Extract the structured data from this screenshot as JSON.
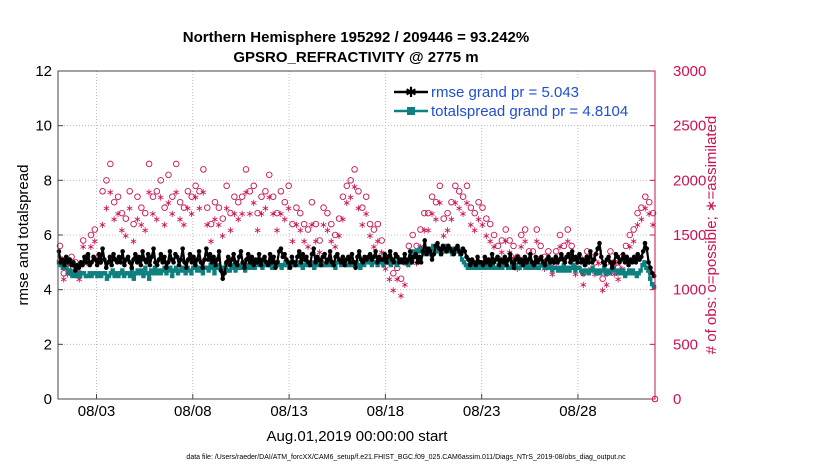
{
  "chart_data": {
    "type": "line",
    "title_line1": "Northern Hemisphere 195292 / 209446 = 93.242%",
    "title_line2": "GPSRO_REFRACTIVITY @ 2775 m",
    "xlabel": "Aug.01,2019 00:00:00 start",
    "ylabel_left": "rmse and totalspread",
    "ylabel_right": "# of obs: o=possible; ∗=assimilated",
    "footer": "data file: /Users/raeder/DAI/ATM_forcXX/CAM6_setup/f.e21.FHIST_BGC.f09_025.CAM6assim.011/Diags_NTrS_2019-08/obs_diag_output.nc",
    "xlim": [
      1,
      32
    ],
    "ylim_left": [
      0,
      12
    ],
    "ylim_right": [
      0,
      3000
    ],
    "x_ticks": [
      3,
      8,
      13,
      18,
      23,
      28
    ],
    "x_tick_labels": [
      "08/03",
      "08/08",
      "08/13",
      "08/18",
      "08/23",
      "08/28"
    ],
    "y_left_ticks": [
      "0",
      "2",
      "4",
      "6",
      "8",
      "10",
      "12"
    ],
    "y_right_ticks": [
      "0",
      "500",
      "1000",
      "1500",
      "2000",
      "2500",
      "3000"
    ],
    "colors": {
      "rmse": "#000000",
      "spread": "#0f8080",
      "obs": "#cc1155",
      "legend_text": "#1f4fd1"
    },
    "series": [
      {
        "name": "rmse grand pr = 5.043",
        "values": [
          5.4,
          5.0,
          5.1,
          4.9,
          5.2,
          5.0,
          5.1,
          4.9,
          5.0,
          4.7,
          4.9,
          4.8,
          5.0,
          4.9,
          5.2,
          5.0,
          5.3,
          4.9,
          5.0,
          5.2,
          5.1,
          4.9,
          5.3,
          5.0,
          5.5,
          5.1,
          4.8,
          5.0,
          5.2,
          4.9,
          5.3,
          5.1,
          5.0,
          5.2,
          5.0,
          5.4,
          4.9,
          5.1,
          5.2,
          5.0,
          4.8,
          5.1,
          5.3,
          5.0,
          5.2,
          4.9,
          5.4,
          5.1,
          5.0,
          5.3,
          4.9,
          5.2,
          5.5,
          5.0,
          4.9,
          5.1,
          5.3,
          5.0,
          5.2,
          4.8,
          5.0,
          5.4,
          5.1,
          5.0,
          5.3,
          5.2,
          4.9,
          5.1,
          5.5,
          5.0,
          4.8,
          5.1,
          5.3,
          5.0,
          5.2,
          4.9,
          5.1,
          5.4,
          5.0,
          4.8,
          5.1,
          5.5,
          5.1,
          5.3,
          5.0,
          5.2,
          4.9,
          5.1,
          5.4,
          4.7,
          4.4,
          4.6,
          5.0,
          5.2,
          4.9,
          5.1,
          5.3,
          5.0,
          4.9,
          5.2,
          5.4,
          5.0,
          4.8,
          5.1,
          5.3,
          5.0,
          5.2,
          4.9,
          5.1,
          5.0,
          5.3,
          4.9,
          5.1,
          5.2,
          5.0,
          4.9,
          5.3,
          5.0,
          5.2,
          4.8,
          5.0,
          5.4,
          5.5,
          5.2,
          5.3,
          5.1,
          5.0,
          4.8,
          5.2,
          5.0,
          4.9,
          5.2,
          5.4,
          5.0,
          5.3,
          5.1,
          5.2,
          5.0,
          4.9,
          5.3,
          5.5,
          5.0,
          5.2,
          5.1,
          4.9,
          5.2,
          5.3,
          5.0,
          5.1,
          5.4,
          5.0,
          4.9,
          5.2,
          5.3,
          5.1,
          5.0,
          5.2,
          4.9,
          5.1,
          5.2,
          5.0,
          5.3,
          5.0,
          4.8,
          5.2,
          5.4,
          5.1,
          5.0,
          5.2,
          5.1,
          5.2,
          5.3,
          5.1,
          5.2,
          5.4,
          5.0,
          5.2,
          5.1,
          5.1,
          5.3,
          5.0,
          5.2,
          5.4,
          5.1,
          5.0,
          5.3,
          5.2,
          5.0,
          5.1,
          5.0,
          5.3,
          5.0,
          5.1,
          5.4,
          5.0,
          5.2,
          5.3,
          5.0,
          5.2,
          5.0,
          5.4,
          5.8,
          5.3,
          5.5,
          5.4,
          5.1,
          5.3,
          5.6,
          5.7,
          5.5,
          5.3,
          5.6,
          5.5,
          5.4,
          5.6,
          5.5,
          5.4,
          5.3,
          5.5,
          5.6,
          5.4,
          5.3,
          5.5,
          5.4,
          5.2,
          5.1,
          4.9,
          5.1,
          5.0,
          4.9,
          5.2,
          5.0,
          5.0,
          4.9,
          5.2,
          5.0,
          5.1,
          4.9,
          5.3,
          5.0,
          5.1,
          5.2,
          4.9,
          5.1,
          5.0,
          5.2,
          4.9,
          5.1,
          5.3,
          5.0,
          4.8,
          5.1,
          5.2,
          5.0,
          5.1,
          4.9,
          5.2,
          5.0,
          5.1,
          5.3,
          5.0,
          4.9,
          5.2,
          5.0,
          5.1,
          5.2,
          5.0,
          4.9,
          5.1,
          5.2,
          5.0,
          5.1,
          5.0,
          5.2,
          5.0,
          5.1,
          5.3,
          5.1,
          5.0,
          5.2,
          5.3,
          5.0,
          5.4,
          5.1,
          5.2,
          5.0,
          5.3,
          5.0,
          5.1,
          4.9,
          5.2,
          5.0,
          5.4,
          5.0,
          5.1,
          5.3,
          5.5,
          5.7,
          5.2,
          5.0,
          4.9,
          5.1,
          5.2,
          5.0,
          4.8,
          5.0,
          5.3,
          5.2,
          5.0,
          5.1,
          5.3,
          5.0,
          5.2,
          4.9,
          5.1,
          5.0,
          5.2,
          5.0,
          5.3,
          5.1,
          5.2,
          5.4,
          5.7,
          5.5,
          5.0,
          4.8,
          4.6,
          4.5
        ]
      },
      {
        "name": "totalspread grand pr = 4.8104",
        "values": [
          5.0,
          4.9,
          4.8,
          4.8,
          4.8,
          4.6,
          4.7,
          4.5,
          4.6,
          4.5,
          4.6,
          4.5,
          4.6,
          4.6,
          4.5,
          4.5,
          4.6,
          4.5,
          4.6,
          4.6,
          4.5,
          4.6,
          4.5,
          4.6,
          4.6,
          4.4,
          4.5,
          4.6,
          4.7,
          4.5,
          4.6,
          4.5,
          4.6,
          4.7,
          4.5,
          4.6,
          4.6,
          4.5,
          4.7,
          4.4,
          4.6,
          4.7,
          4.6,
          4.7,
          4.5,
          4.8,
          4.6,
          4.4,
          4.7,
          4.6,
          4.8,
          4.6,
          4.7,
          4.6,
          4.7,
          4.8,
          4.6,
          4.7,
          4.8,
          4.5,
          4.7,
          4.8,
          4.6,
          4.7,
          4.8,
          4.7,
          4.6,
          4.8,
          4.7,
          4.6,
          4.8,
          4.9,
          4.7,
          4.8,
          4.7,
          4.6,
          4.8,
          4.8,
          4.7,
          4.9,
          4.8,
          4.6,
          4.8,
          4.9,
          4.8,
          4.7,
          4.8,
          4.9,
          4.7,
          4.7,
          4.8,
          4.9,
          4.7,
          4.8,
          4.8,
          4.9,
          4.8,
          4.7,
          4.9,
          4.8,
          4.9,
          4.8,
          4.8,
          4.9,
          5.0,
          4.9,
          4.8,
          5.0,
          4.9,
          4.9,
          5.0,
          4.8,
          4.9,
          4.9,
          5.0,
          4.9,
          4.8,
          4.9,
          5.0,
          4.9,
          4.8,
          4.9,
          5.0,
          4.9,
          4.9,
          5.0,
          4.9,
          4.8,
          4.9,
          5.0,
          4.9,
          4.9,
          5.0,
          4.8,
          4.9,
          5.0,
          4.9,
          5.0,
          4.9,
          4.9,
          5.0,
          4.9,
          5.0,
          4.9,
          4.8,
          5.0,
          5.0,
          4.9,
          5.0,
          5.0,
          4.9,
          4.9,
          5.0,
          4.9,
          5.0,
          5.0,
          4.9,
          4.8,
          5.0,
          4.9,
          5.0,
          5.1,
          5.0,
          4.9,
          5.0,
          5.0,
          4.9,
          5.1,
          5.0,
          4.9,
          5.1,
          5.0,
          5.0,
          4.9,
          5.1,
          5.0,
          4.9,
          5.1,
          5.0,
          5.0,
          5.1,
          5.0,
          4.9,
          5.2,
          5.1,
          5.4,
          5.2,
          5.4,
          5.5,
          5.4,
          5.3,
          5.5,
          5.4,
          5.3,
          5.5,
          5.6,
          5.4,
          5.5,
          5.4,
          5.3,
          5.5,
          5.4,
          5.6,
          5.5,
          5.4,
          5.3,
          5.5,
          5.4,
          5.5,
          5.3,
          5.1,
          5.0,
          4.9,
          4.8,
          4.9,
          4.8,
          4.9,
          4.8,
          4.9,
          4.8,
          4.9,
          4.8,
          4.8,
          4.9,
          4.8,
          4.8,
          4.9,
          4.8,
          4.8,
          4.9,
          4.8,
          4.8,
          4.9,
          4.9,
          4.8,
          4.8,
          4.9,
          4.8,
          4.9,
          4.8,
          4.8,
          4.9,
          4.9,
          4.8,
          4.9,
          4.8,
          4.9,
          4.8,
          4.9,
          4.8,
          4.8,
          4.9,
          4.9,
          4.8,
          4.8,
          4.9,
          4.8,
          4.7,
          4.8,
          4.8,
          4.7,
          4.8,
          4.7,
          4.9,
          4.7,
          4.8,
          4.7,
          4.8,
          4.9,
          4.7,
          4.8,
          4.8,
          4.7,
          4.6,
          4.7,
          4.7,
          4.6,
          4.7,
          4.8,
          4.7,
          4.6,
          4.7,
          4.6,
          4.7,
          4.8,
          4.6,
          4.7,
          4.6,
          4.7,
          4.8,
          4.7,
          4.6,
          4.7,
          4.6,
          4.7,
          4.5,
          4.6,
          4.7,
          4.6,
          4.7,
          4.6,
          4.5,
          4.6,
          4.7,
          4.9,
          5.0,
          4.8,
          4.7,
          4.4,
          4.2,
          4.1
        ]
      },
      {
        "name": "possible obs",
        "marker": "o",
        "values": [
          1400,
          1150,
          1200,
          1300,
          1250,
          1150,
          1450,
          1300,
          1500,
          1550,
          1300,
          1900,
          2000,
          2150,
          1800,
          1850,
          1700,
          1650,
          1900,
          1600,
          1850,
          1750,
          1700,
          2150,
          1850,
          1900,
          2000,
          1750,
          2050,
          1850,
          2150,
          1800,
          1750,
          1900,
          1850,
          1950,
          1900,
          2100,
          1750,
          1600,
          1800,
          1750,
          1650,
          1950,
          1700,
          1850,
          1800,
          1850,
          2100,
          1900,
          1950,
          1700,
          1850,
          1900,
          2050,
          1850,
          1700,
          1900,
          1800,
          1950,
          1600,
          1750,
          1700,
          1600,
          1550,
          1800,
          1600,
          1450,
          1750,
          1700,
          1600,
          1500,
          1650,
          1850,
          1950,
          2000,
          2100,
          1900,
          1750,
          1850,
          1600,
          1550,
          1600,
          1450,
          1300,
          1250,
          1150,
          1200,
          1100,
          1250,
          1400,
          1500,
          1400,
          1550,
          1700,
          1700,
          1850,
          1800,
          1950,
          1650,
          1700,
          1800,
          1950,
          1900,
          1850,
          1950,
          1750,
          1700,
          1800,
          1750,
          1650,
          1600,
          1500,
          1400,
          1450,
          1550,
          1450,
          1400,
          1300,
          1500,
          1550,
          1350,
          1350,
          1550,
          1400,
          1300,
          1350,
          1250,
          1350,
          1500,
          1400,
          1550,
          1400,
          1250,
          1300,
          1150,
          1350,
          1300,
          1250,
          1350,
          1100,
          1150,
          1350,
          1250,
          1200,
          1300,
          1400,
          1500,
          1550,
          1700,
          1750,
          1850,
          1800,
          1700
        ]
      },
      {
        "name": "assimilated obs",
        "marker": "*",
        "values": [
          1300,
          1100,
          1150,
          1250,
          1200,
          1100,
          1400,
          1250,
          1400,
          1450,
          1250,
          1600,
          1750,
          1900,
          1650,
          1700,
          1550,
          1500,
          1750,
          1450,
          1650,
          1600,
          1550,
          1900,
          1700,
          1650,
          1850,
          1600,
          1800,
          1700,
          1900,
          1650,
          1600,
          1750,
          1700,
          1850,
          1750,
          1900,
          1600,
          1450,
          1650,
          1600,
          1500,
          1750,
          1550,
          1700,
          1650,
          1700,
          1900,
          1700,
          1800,
          1550,
          1700,
          1750,
          1850,
          1700,
          1550,
          1700,
          1650,
          1750,
          1450,
          1600,
          1550,
          1450,
          1400,
          1600,
          1450,
          1350,
          1600,
          1550,
          1450,
          1400,
          1500,
          1650,
          1800,
          1850,
          1950,
          1750,
          1600,
          1700,
          1500,
          1400,
          1450,
          1350,
          1200,
          1100,
          1000,
          1100,
          950,
          1050,
          1250,
          1350,
          1250,
          1400,
          1550,
          1550,
          1700,
          1650,
          1800,
          1500,
          1550,
          1650,
          1800,
          1750,
          1700,
          1800,
          1600,
          1550,
          1650,
          1600,
          1500,
          1450,
          1400,
          1300,
          1350,
          1450,
          1350,
          1300,
          1200,
          1400,
          1450,
          1250,
          1250,
          1450,
          1300,
          1200,
          1250,
          1150,
          1250,
          1400,
          1300,
          1450,
          1300,
          1150,
          1200,
          1050,
          1250,
          1200,
          1150,
          1250,
          1000,
          1050,
          1250,
          1150,
          1100,
          1200,
          1300,
          1400,
          1450,
          1600,
          1650,
          1750,
          1700,
          1600
        ]
      }
    ],
    "legend": [
      {
        "label": "rmse grand pr = 5.043",
        "color": "#000000",
        "marker": "*"
      },
      {
        "label": "totalspread grand pr = 4.8104",
        "color": "#0f8080",
        "marker": "square"
      }
    ]
  }
}
